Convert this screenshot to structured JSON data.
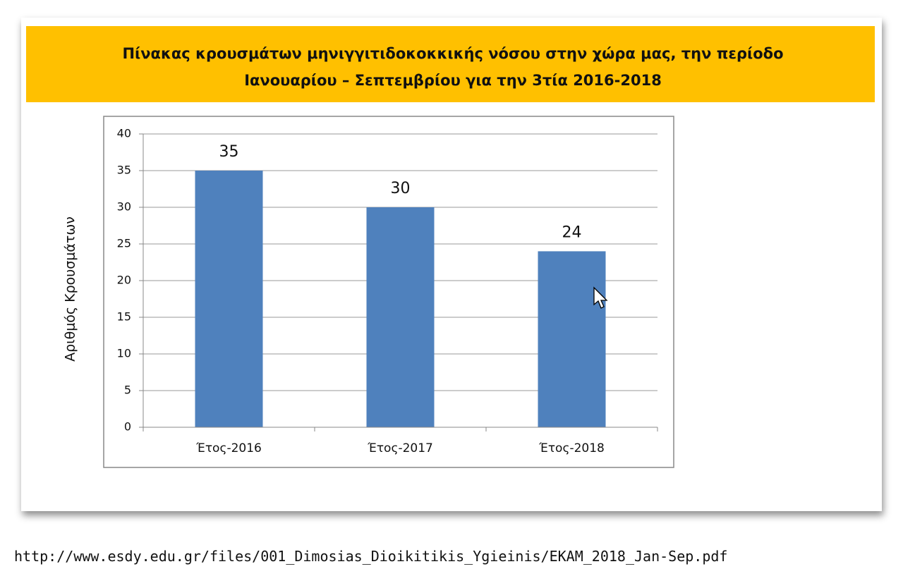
{
  "chart_data": {
    "type": "bar",
    "title": "Πίνακας κρουσμάτων μηνιγγιτιδοκοκκικής νόσου στην χώρα μας, την περίοδο Ιανουαρίου – Σεπτεμβρίου για την 3τία 2016-2018",
    "y_label": "Αριθμός Κρουσμάτων",
    "categories": [
      "Έτος-2016",
      "Έτος-2017",
      "Έτος-2018"
    ],
    "values": [
      35,
      30,
      24
    ],
    "color": "#4f81bd",
    "ylim": [
      0,
      40
    ],
    "yticks": [
      0,
      5,
      10,
      15,
      20,
      25,
      30,
      35,
      40
    ],
    "grid": true
  },
  "source_url": "http://www.esdy.edu.gr/files/001_Dimosias_Dioikitikis_Ygieinis/EKAM_2018_Jan-Sep.pdf"
}
